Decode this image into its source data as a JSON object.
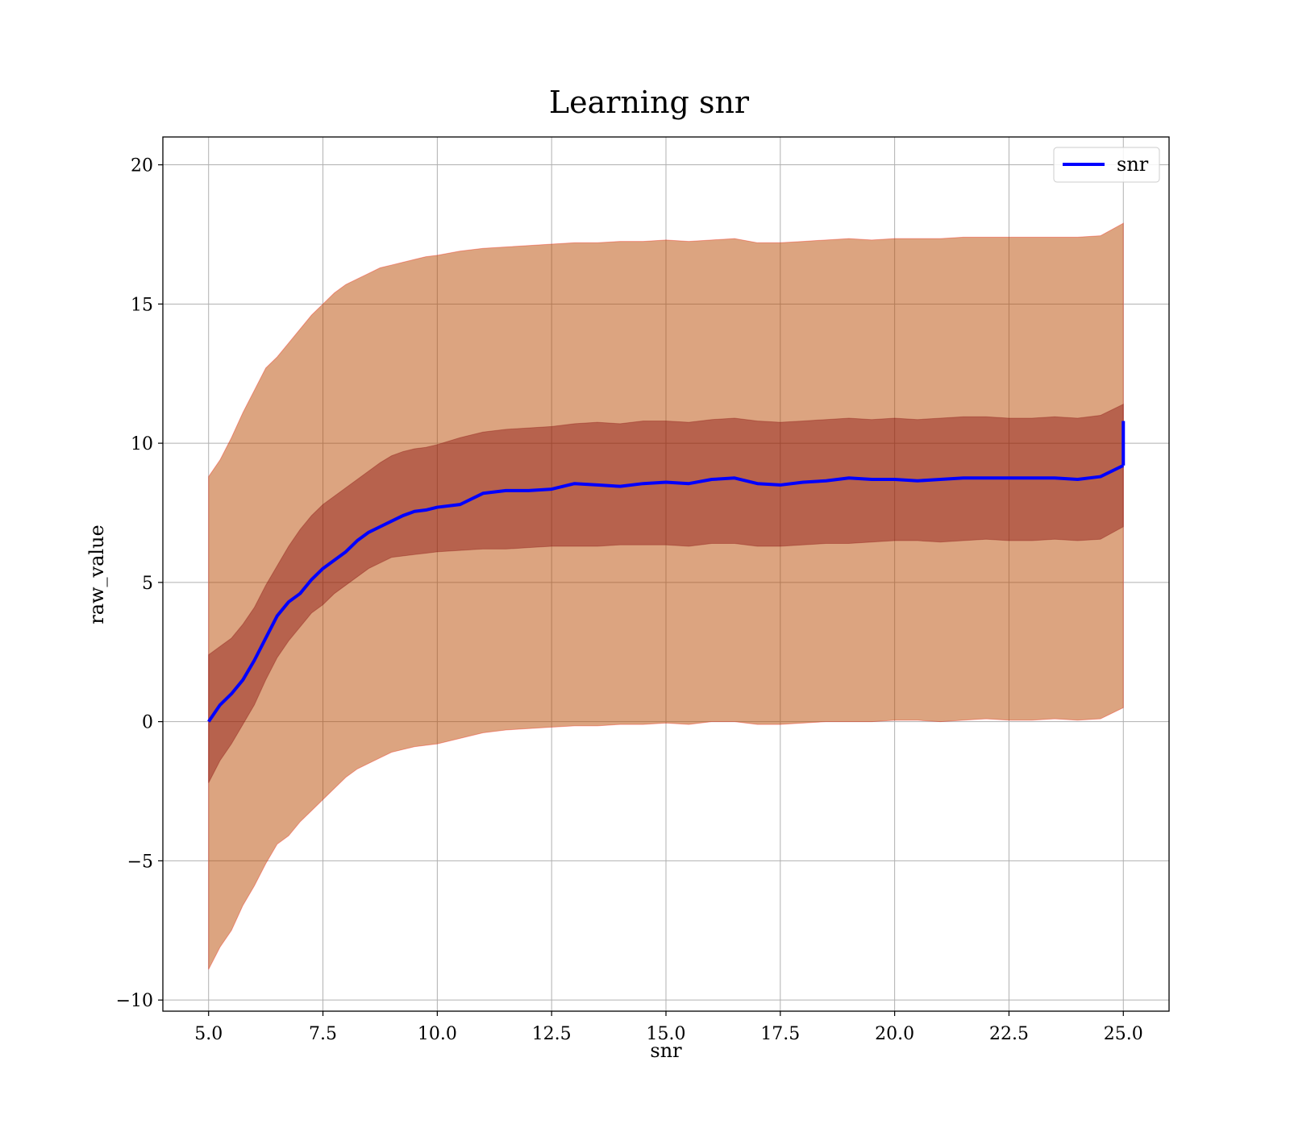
{
  "chart_data": {
    "type": "area",
    "title": "Learning snr",
    "xlabel": "snr",
    "ylabel": "raw_value",
    "xlim": [
      4.0,
      26.0
    ],
    "ylim": [
      -10.4,
      21.0
    ],
    "x_ticks": [
      5.0,
      7.5,
      10.0,
      12.5,
      15.0,
      17.5,
      20.0,
      22.5,
      25.0
    ],
    "x_tick_labels": [
      "5.0",
      "7.5",
      "10.0",
      "12.5",
      "15.0",
      "17.5",
      "20.0",
      "22.5",
      "25.0"
    ],
    "y_ticks": [
      -10,
      -5,
      0,
      5,
      10,
      15,
      20
    ],
    "y_tick_labels": [
      "−10",
      "−5",
      "0",
      "5",
      "10",
      "15",
      "20"
    ],
    "grid": true,
    "legend": {
      "position": "top-right",
      "entries": [
        "snr"
      ]
    },
    "x": [
      5.0,
      5.25,
      5.5,
      5.75,
      6.0,
      6.25,
      6.5,
      6.75,
      7.0,
      7.25,
      7.5,
      7.75,
      8.0,
      8.25,
      8.5,
      8.75,
      9.0,
      9.25,
      9.5,
      9.75,
      10.0,
      10.5,
      11.0,
      11.5,
      12.0,
      12.5,
      13.0,
      13.5,
      14.0,
      14.5,
      15.0,
      15.5,
      16.0,
      16.5,
      17.0,
      17.5,
      18.0,
      18.5,
      19.0,
      19.5,
      20.0,
      20.5,
      21.0,
      21.5,
      22.0,
      22.5,
      23.0,
      23.5,
      24.0,
      24.5,
      25.0
    ],
    "series": [
      {
        "name": "snr",
        "values": [
          0.0,
          0.6,
          1.0,
          1.5,
          2.2,
          3.0,
          3.8,
          4.3,
          4.6,
          5.1,
          5.5,
          5.8,
          6.1,
          6.5,
          6.8,
          7.0,
          7.2,
          7.4,
          7.55,
          7.6,
          7.7,
          7.8,
          8.2,
          8.3,
          8.3,
          8.35,
          8.55,
          8.5,
          8.45,
          8.55,
          8.6,
          8.55,
          8.7,
          8.75,
          8.55,
          8.5,
          8.6,
          8.65,
          8.75,
          8.7,
          8.7,
          8.65,
          8.7,
          8.75,
          8.75,
          8.75,
          8.75,
          8.75,
          8.7,
          8.8,
          9.2
        ],
        "color": "#0000ff",
        "end_spike": 10.8
      },
      {
        "name": "",
        "role": "inner-band",
        "color": "#800000",
        "lower": [
          -2.2,
          -1.4,
          -0.8,
          -0.1,
          0.6,
          1.5,
          2.3,
          2.9,
          3.4,
          3.9,
          4.2,
          4.6,
          4.9,
          5.2,
          5.5,
          5.7,
          5.9,
          5.95,
          6.0,
          6.05,
          6.1,
          6.15,
          6.2,
          6.2,
          6.25,
          6.3,
          6.3,
          6.3,
          6.35,
          6.35,
          6.35,
          6.3,
          6.4,
          6.4,
          6.3,
          6.3,
          6.35,
          6.4,
          6.4,
          6.45,
          6.5,
          6.5,
          6.45,
          6.5,
          6.55,
          6.5,
          6.5,
          6.55,
          6.5,
          6.55,
          7.0
        ],
        "upper": [
          2.4,
          2.7,
          3.0,
          3.5,
          4.1,
          4.9,
          5.6,
          6.3,
          6.9,
          7.4,
          7.8,
          8.1,
          8.4,
          8.7,
          9.0,
          9.3,
          9.55,
          9.7,
          9.8,
          9.85,
          9.95,
          10.2,
          10.4,
          10.5,
          10.55,
          10.6,
          10.7,
          10.75,
          10.7,
          10.8,
          10.8,
          10.75,
          10.85,
          10.9,
          10.8,
          10.75,
          10.8,
          10.85,
          10.9,
          10.85,
          10.9,
          10.85,
          10.9,
          10.95,
          10.95,
          10.9,
          10.9,
          10.95,
          10.9,
          11.0,
          11.4
        ]
      },
      {
        "name": "",
        "role": "outer-band",
        "color": "#ff0000",
        "lower": [
          -8.9,
          -8.1,
          -7.5,
          -6.6,
          -5.9,
          -5.1,
          -4.4,
          -4.1,
          -3.6,
          -3.2,
          -2.8,
          -2.4,
          -2.0,
          -1.7,
          -1.5,
          -1.3,
          -1.1,
          -1.0,
          -0.9,
          -0.85,
          -0.8,
          -0.6,
          -0.4,
          -0.3,
          -0.25,
          -0.2,
          -0.15,
          -0.15,
          -0.1,
          -0.1,
          -0.05,
          -0.1,
          0.0,
          0.0,
          -0.1,
          -0.1,
          -0.05,
          0.0,
          0.0,
          0.0,
          0.05,
          0.05,
          0.0,
          0.05,
          0.1,
          0.05,
          0.05,
          0.1,
          0.05,
          0.1,
          0.5
        ],
        "upper": [
          8.8,
          9.4,
          10.2,
          11.1,
          11.9,
          12.7,
          13.1,
          13.6,
          14.1,
          14.6,
          15.0,
          15.4,
          15.7,
          15.9,
          16.1,
          16.3,
          16.4,
          16.5,
          16.6,
          16.7,
          16.75,
          16.9,
          17.0,
          17.05,
          17.1,
          17.15,
          17.2,
          17.2,
          17.25,
          17.25,
          17.3,
          17.25,
          17.3,
          17.35,
          17.2,
          17.2,
          17.25,
          17.3,
          17.35,
          17.3,
          17.35,
          17.35,
          17.35,
          17.4,
          17.4,
          17.4,
          17.4,
          17.4,
          17.4,
          17.45,
          17.9
        ]
      }
    ]
  }
}
